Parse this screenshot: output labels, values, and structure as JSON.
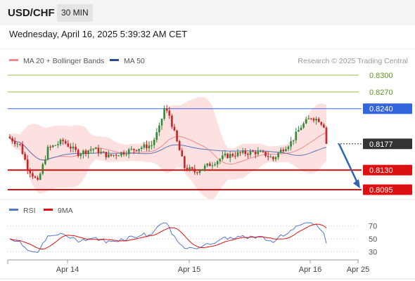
{
  "header": {
    "symbol": "USD/CHF",
    "interval": "30 MIN"
  },
  "timestamp": "Wednesday, April 16, 2025 5:39:32 AM CET",
  "legend": {
    "items": [
      {
        "label": "MA 20 + Bollinger Bands",
        "color": "#f08a8a"
      },
      {
        "label": "MA 50",
        "color": "#2a4a8a"
      }
    ],
    "copyright": "Research © 2025 Trading Central"
  },
  "rsi_legend": {
    "items": [
      {
        "label": "RSI",
        "color": "#5577cc"
      },
      {
        "label": "9MA",
        "color": "#dd1111"
      }
    ]
  },
  "chart_data": {
    "type": "candlestick",
    "price_range": [
      0.8085,
      0.8325
    ],
    "current_price": 0.8177,
    "levels": [
      {
        "value": "0.8300",
        "color": "#8fbf3f",
        "label_color": "#5a9a1a",
        "style": "plain"
      },
      {
        "value": "0.8270",
        "color": "#8fbf3f",
        "label_color": "#5a9a1a",
        "style": "plain"
      },
      {
        "value": "0.8240",
        "color": "#3366dd",
        "label_color": "#ffffff",
        "style": "tag"
      },
      {
        "value": "0.8177",
        "color": "#333333",
        "label_color": "#ffffff",
        "style": "tag-dotted"
      },
      {
        "value": "0.8130",
        "color": "#dd1111",
        "label_color": "#ffffff",
        "style": "tag"
      },
      {
        "value": "0.8095",
        "color": "#dd1111",
        "label_color": "#ffffff",
        "style": "tag"
      }
    ],
    "x_ticks": [
      "Apr 14",
      "Apr 15",
      "Apr 16",
      "Apr 25"
    ],
    "rsi_ticks": [
      "70",
      "50",
      "30"
    ],
    "forecast_arrow": {
      "from": 0.8177,
      "to": 0.8095,
      "color": "#2f64b4"
    },
    "colors": {
      "up": "#2e8b3a",
      "down": "#cc2222",
      "band": "#fcd9d9",
      "ma20": "#f08a8a",
      "ma50": "#5b74b8"
    }
  }
}
